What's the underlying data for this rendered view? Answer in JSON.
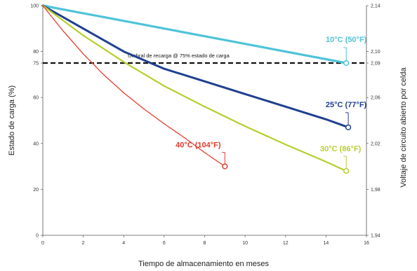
{
  "chart_data": {
    "type": "line",
    "xlabel": "Tiempo de almacenamiento en meses",
    "ylabel": "Estado de carga (%)",
    "y2label": "Voltaje de circuito abierto por celda",
    "xlim": [
      0,
      16
    ],
    "ylim": [
      0,
      100
    ],
    "x_ticks": [
      "0",
      "2",
      "4",
      "6",
      "8",
      "10",
      "12",
      "14",
      "16"
    ],
    "y_ticks": [
      "0",
      "20",
      "40",
      "60",
      "75",
      "80",
      "100"
    ],
    "y2_ticks": [
      {
        "y": 0,
        "label": "1,94"
      },
      {
        "y": 20,
        "label": "1,98"
      },
      {
        "y": 40,
        "label": "2,02"
      },
      {
        "y": 60,
        "label": "2,06"
      },
      {
        "y": 75,
        "label": "2,09"
      },
      {
        "y": 80,
        "label": "2,10"
      },
      {
        "y": 100,
        "label": "2,14"
      }
    ],
    "grid": false,
    "threshold": {
      "y": 75,
      "label": "Umbral de recarga @ 75% estado de carga"
    },
    "series": [
      {
        "name": "10°C (50°F)",
        "color": "#4fc3d8",
        "x": [
          0,
          15
        ],
        "y": [
          100,
          75
        ]
      },
      {
        "name": "25°C (77°F)",
        "color": "#1f3f8f",
        "x": [
          0,
          2,
          4,
          6,
          8,
          10,
          12,
          14,
          15.1
        ],
        "y": [
          100,
          90,
          80,
          72.5,
          67,
          61.5,
          56,
          50.5,
          47
        ]
      },
      {
        "name": "30°C (86°F)",
        "color": "#b5cf2c",
        "x": [
          0,
          2,
          4,
          6,
          8,
          10,
          12,
          14,
          15
        ],
        "y": [
          100,
          87,
          75.5,
          65,
          56,
          47.5,
          39.5,
          32,
          28
        ]
      },
      {
        "name": "40°C (104°F)",
        "color": "#e33b2e",
        "x": [
          0,
          1,
          2,
          3,
          4,
          5,
          6,
          7,
          8,
          9
        ],
        "y": [
          100,
          89,
          79,
          70,
          62,
          55,
          48.5,
          42.5,
          36,
          30
        ]
      }
    ]
  }
}
